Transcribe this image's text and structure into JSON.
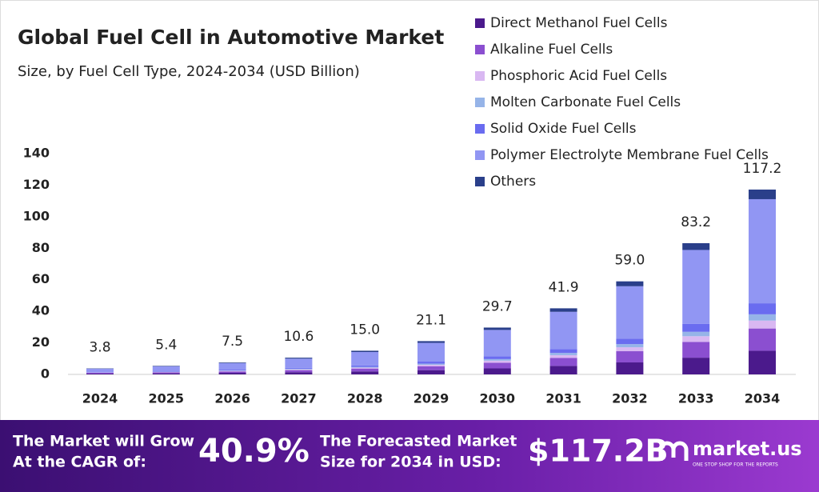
{
  "chart_data": {
    "type": "bar",
    "stacked": true,
    "title": "Global Fuel Cell in Automotive Market",
    "subtitle": "Size, by Fuel Cell Type, 2024-2034 (USD Billion)",
    "categories": [
      "2024",
      "2025",
      "2026",
      "2027",
      "2028",
      "2029",
      "2030",
      "2031",
      "2032",
      "2033",
      "2034"
    ],
    "series": [
      {
        "name": "Direct Methanol Fuel Cells",
        "color": "#4b1a8c",
        "values": [
          0.5,
          0.7,
          1.0,
          1.4,
          1.9,
          2.7,
          3.8,
          5.4,
          7.6,
          10.6,
          15.0
        ]
      },
      {
        "name": "Alkaline Fuel Cells",
        "color": "#8b4fd0",
        "values": [
          0.5,
          0.6,
          0.9,
          1.3,
          1.8,
          2.5,
          3.6,
          5.0,
          7.1,
          10.0,
          14.1
        ]
      },
      {
        "name": "Phosphoric Acid Fuel Cells",
        "color": "#d9b8f2",
        "values": [
          0.2,
          0.2,
          0.3,
          0.5,
          0.6,
          0.9,
          1.3,
          1.8,
          2.5,
          3.6,
          5.0
        ]
      },
      {
        "name": "Molten Carbonate Fuel Cells",
        "color": "#96b4e8",
        "values": [
          0.1,
          0.2,
          0.3,
          0.4,
          0.5,
          0.7,
          1.0,
          1.4,
          2.0,
          2.8,
          4.0
        ]
      },
      {
        "name": "Solid Oxide Fuel Cells",
        "color": "#6a6cf0",
        "values": [
          0.2,
          0.3,
          0.5,
          0.6,
          0.9,
          1.3,
          1.8,
          2.5,
          3.5,
          5.0,
          7.0
        ]
      },
      {
        "name": "Polymer Electrolyte Membrane Fuel Cells",
        "color": "#9196f3",
        "values": [
          2.1,
          3.1,
          4.1,
          5.8,
          8.5,
          11.9,
          16.7,
          23.6,
          33.2,
          46.9,
          66.0
        ]
      },
      {
        "name": "Others",
        "color": "#2a3f8a",
        "values": [
          0.2,
          0.3,
          0.4,
          0.6,
          0.8,
          1.1,
          1.5,
          2.2,
          3.1,
          4.3,
          6.1
        ]
      }
    ],
    "totals": [
      3.8,
      5.4,
      7.5,
      10.6,
      15.0,
      21.1,
      29.7,
      41.9,
      59.0,
      83.2,
      117.2
    ],
    "total_labels": [
      "3.8",
      "5.4",
      "7.5",
      "10.6",
      "15.0",
      "21.1",
      "29.7",
      "41.9",
      "59.0",
      "83.2",
      "117.2"
    ],
    "ylim": [
      0,
      140
    ],
    "yticks": [
      0,
      20,
      40,
      60,
      80,
      100,
      120,
      140
    ]
  },
  "banner": {
    "cagr_label": [
      "The Market will Grow",
      "At the CAGR of:"
    ],
    "cagr": "40.9%",
    "forecast_label": [
      "The Forecasted Market",
      "Size for 2034 in USD:"
    ],
    "forecast": "$117.2B",
    "brand": "market.us",
    "tagline": "ONE STOP SHOP FOR THE REPORTS"
  }
}
